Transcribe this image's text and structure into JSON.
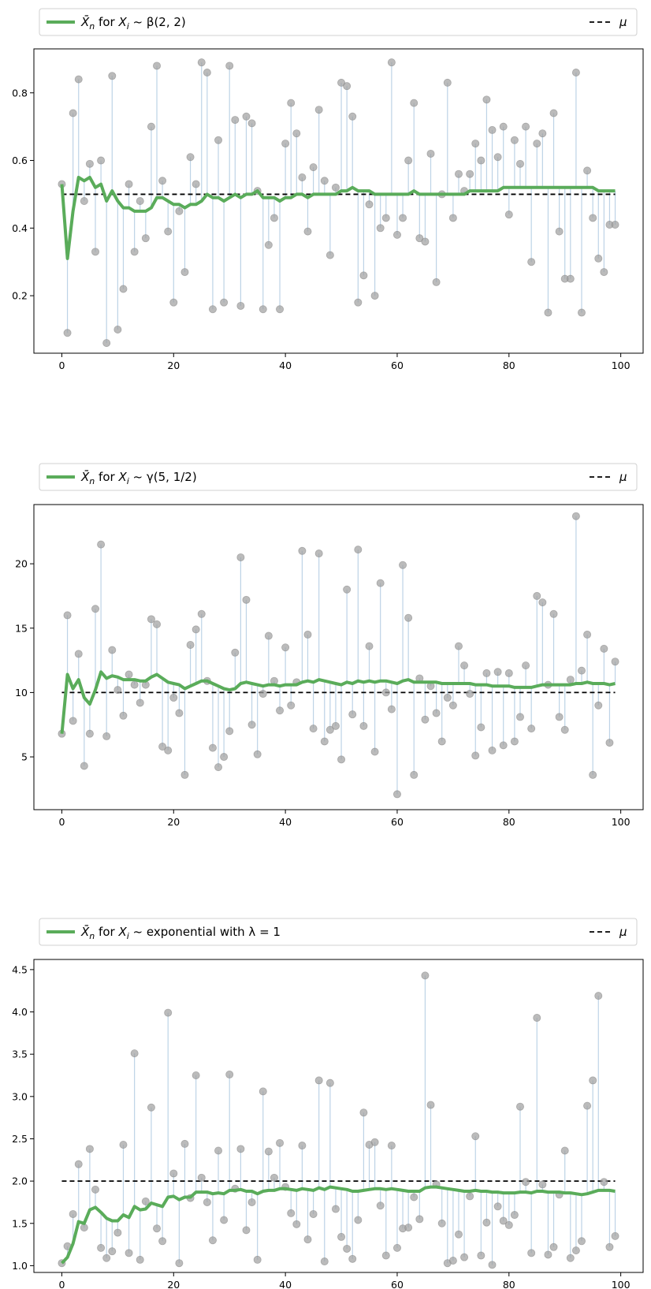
{
  "chart_data": [
    {
      "type": "scatter",
      "title": "",
      "legend": {
        "placement": "top",
        "series_label_prefix": "X̄",
        "series_label_sub": "n",
        "series_label_rest": " for ",
        "series_label_var": "X",
        "series_label_var_sub": "i",
        "series_label_dist": " ~ β(2, 2)",
        "mu_label": "μ"
      },
      "xlim": [
        -5,
        104
      ],
      "ylim": [
        0.03,
        0.93
      ],
      "xticks": [
        "0",
        "20",
        "40",
        "60",
        "80",
        "100"
      ],
      "xtick_values": [
        0,
        20,
        40,
        60,
        80,
        100
      ],
      "yticks": [
        "0.2",
        "0.4",
        "0.6",
        "0.8"
      ],
      "ytick_values": [
        0.2,
        0.4,
        0.6,
        0.8
      ],
      "mu": 0.5,
      "samples": [
        0.53,
        0.09,
        0.74,
        0.84,
        0.48,
        0.59,
        0.33,
        0.6,
        0.06,
        0.85,
        0.1,
        0.22,
        0.53,
        0.33,
        0.48,
        0.37,
        0.7,
        0.88,
        0.54,
        0.39,
        0.18,
        0.45,
        0.27,
        0.61,
        0.53,
        0.89,
        0.86,
        0.16,
        0.66,
        0.18,
        0.88,
        0.72,
        0.17,
        0.73,
        0.71,
        0.51,
        0.16,
        0.35,
        0.43,
        0.16,
        0.65,
        0.77,
        0.68,
        0.55,
        0.39,
        0.58,
        0.75,
        0.54,
        0.32,
        0.52,
        0.83,
        0.82,
        0.73,
        0.18,
        0.26,
        0.47,
        0.2,
        0.4,
        0.43,
        0.89,
        0.38,
        0.43,
        0.6,
        0.77,
        0.37,
        0.36,
        0.62,
        0.24,
        0.5,
        0.83,
        0.43,
        0.56,
        0.51,
        0.56,
        0.65,
        0.6,
        0.78,
        0.69,
        0.61,
        0.7,
        0.44,
        0.66,
        0.59,
        0.7,
        0.3,
        0.65,
        0.68,
        0.15,
        0.74,
        0.39,
        0.25,
        0.25,
        0.86,
        0.15,
        0.57,
        0.43,
        0.31,
        0.27,
        0.41,
        0.41
      ],
      "running_mean": [
        0.53,
        0.31,
        0.45,
        0.55,
        0.54,
        0.55,
        0.52,
        0.53,
        0.48,
        0.51,
        0.48,
        0.46,
        0.46,
        0.45,
        0.45,
        0.45,
        0.46,
        0.49,
        0.49,
        0.48,
        0.47,
        0.47,
        0.46,
        0.47,
        0.47,
        0.48,
        0.5,
        0.49,
        0.49,
        0.48,
        0.49,
        0.5,
        0.49,
        0.5,
        0.5,
        0.51,
        0.49,
        0.49,
        0.49,
        0.48,
        0.49,
        0.49,
        0.5,
        0.5,
        0.49,
        0.5,
        0.5,
        0.5,
        0.5,
        0.5,
        0.51,
        0.51,
        0.52,
        0.51,
        0.51,
        0.51,
        0.5,
        0.5,
        0.5,
        0.5,
        0.5,
        0.5,
        0.5,
        0.51,
        0.5,
        0.5,
        0.5,
        0.5,
        0.5,
        0.5,
        0.5,
        0.5,
        0.5,
        0.51,
        0.51,
        0.51,
        0.51,
        0.51,
        0.51,
        0.52,
        0.52,
        0.52,
        0.52,
        0.52,
        0.52,
        0.52,
        0.52,
        0.52,
        0.52,
        0.52,
        0.52,
        0.52,
        0.52,
        0.52,
        0.52,
        0.52,
        0.51,
        0.51,
        0.51,
        0.51
      ]
    },
    {
      "type": "scatter",
      "title": "",
      "legend": {
        "placement": "top",
        "series_label_prefix": "X̄",
        "series_label_sub": "n",
        "series_label_rest": " for ",
        "series_label_var": "X",
        "series_label_var_sub": "i",
        "series_label_dist": " ~ γ(5, 1/2)",
        "mu_label": "μ"
      },
      "xlim": [
        -5,
        104
      ],
      "ylim": [
        0.9,
        24.6
      ],
      "xticks": [
        "0",
        "20",
        "40",
        "60",
        "80",
        "100"
      ],
      "xtick_values": [
        0,
        20,
        40,
        60,
        80,
        100
      ],
      "yticks": [
        "5",
        "10",
        "15",
        "20"
      ],
      "ytick_values": [
        5,
        10,
        15,
        20
      ],
      "mu": 10,
      "samples": [
        6.8,
        16.0,
        7.8,
        13.0,
        4.3,
        6.8,
        16.5,
        21.5,
        6.6,
        13.3,
        10.2,
        8.2,
        11.4,
        10.6,
        9.2,
        10.6,
        15.7,
        15.3,
        5.8,
        5.5,
        9.6,
        8.4,
        3.6,
        13.7,
        14.9,
        16.1,
        10.9,
        5.7,
        4.2,
        5.0,
        7.0,
        13.1,
        20.5,
        17.2,
        7.5,
        5.2,
        9.9,
        14.4,
        10.9,
        8.6,
        13.5,
        9.0,
        10.8,
        21.0,
        14.5,
        7.2,
        20.8,
        6.2,
        7.1,
        7.4,
        4.8,
        18.0,
        8.3,
        21.1,
        7.4,
        13.6,
        5.4,
        18.5,
        10.0,
        8.7,
        2.1,
        19.9,
        15.8,
        3.6,
        11.1,
        7.9,
        10.5,
        8.4,
        6.2,
        9.6,
        9.0,
        13.6,
        12.1,
        9.9,
        5.1,
        7.3,
        11.5,
        5.5,
        11.6,
        5.9,
        11.5,
        6.2,
        8.1,
        12.1,
        7.2,
        17.5,
        17.0,
        10.6,
        16.1,
        8.1,
        7.1,
        11.0,
        23.7,
        11.7,
        14.5,
        3.6,
        9.0,
        13.4,
        6.1,
        12.4
      ],
      "running_mean": [
        6.8,
        11.4,
        10.3,
        11.0,
        9.6,
        9.1,
        10.2,
        11.6,
        11.1,
        11.3,
        11.2,
        11.0,
        11.0,
        11.0,
        10.9,
        10.9,
        11.2,
        11.4,
        11.1,
        10.8,
        10.7,
        10.6,
        10.3,
        10.5,
        10.7,
        10.9,
        10.9,
        10.7,
        10.5,
        10.3,
        10.2,
        10.3,
        10.7,
        10.8,
        10.7,
        10.6,
        10.5,
        10.6,
        10.6,
        10.5,
        10.6,
        10.6,
        10.6,
        10.8,
        10.9,
        10.8,
        11.0,
        10.9,
        10.8,
        10.7,
        10.6,
        10.8,
        10.7,
        10.9,
        10.8,
        10.9,
        10.8,
        10.9,
        10.9,
        10.8,
        10.7,
        10.9,
        11.0,
        10.8,
        10.8,
        10.8,
        10.8,
        10.8,
        10.7,
        10.7,
        10.7,
        10.7,
        10.7,
        10.7,
        10.6,
        10.6,
        10.6,
        10.5,
        10.5,
        10.5,
        10.5,
        10.4,
        10.4,
        10.4,
        10.4,
        10.5,
        10.6,
        10.6,
        10.6,
        10.6,
        10.6,
        10.6,
        10.7,
        10.7,
        10.8,
        10.7,
        10.7,
        10.7,
        10.6,
        10.7
      ]
    },
    {
      "type": "scatter",
      "title": "",
      "legend": {
        "placement": "top",
        "series_label_prefix": "X̄",
        "series_label_sub": "n",
        "series_label_rest": " for ",
        "series_label_var": "X",
        "series_label_var_sub": "i",
        "series_label_dist": " ~ exponential with λ = 1",
        "mu_label": "μ"
      },
      "xlim": [
        -5,
        104
      ],
      "ylim": [
        0.92,
        4.62
      ],
      "xticks": [
        "0",
        "20",
        "40",
        "60",
        "80",
        "100"
      ],
      "xtick_values": [
        0,
        20,
        40,
        60,
        80,
        100
      ],
      "yticks": [
        "1.0",
        "1.5",
        "2.0",
        "2.5",
        "3.0",
        "3.5",
        "4.0",
        "4.5"
      ],
      "ytick_values": [
        1.0,
        1.5,
        2.0,
        2.5,
        3.0,
        3.5,
        4.0,
        4.5
      ],
      "mu": 2.0,
      "samples": [
        1.03,
        1.23,
        1.61,
        2.2,
        1.45,
        2.38,
        1.9,
        1.21,
        1.09,
        1.17,
        1.39,
        2.43,
        1.15,
        3.51,
        1.07,
        1.76,
        2.87,
        1.44,
        1.29,
        3.99,
        2.09,
        1.03,
        2.44,
        1.8,
        3.25,
        2.04,
        1.75,
        1.3,
        2.36,
        1.54,
        3.26,
        1.91,
        2.38,
        1.42,
        1.75,
        1.07,
        3.06,
        2.35,
        2.04,
        2.45,
        1.93,
        1.62,
        1.49,
        2.42,
        1.31,
        1.61,
        3.19,
        1.05,
        3.16,
        1.67,
        1.34,
        1.2,
        1.08,
        1.54,
        2.81,
        2.43,
        2.46,
        1.71,
        1.12,
        2.42,
        1.21,
        1.44,
        1.45,
        1.81,
        1.55,
        4.43,
        2.9,
        1.96,
        1.5,
        1.03,
        1.06,
        1.37,
        1.1,
        1.82,
        2.53,
        1.12,
        1.51,
        1.01,
        1.7,
        1.53,
        1.48,
        1.6,
        2.88,
        1.99,
        1.15,
        3.93,
        1.96,
        1.13,
        1.22,
        1.84,
        2.36,
        1.09,
        1.18,
        1.29,
        2.89,
        3.19,
        4.19,
        1.99,
        1.22,
        1.35
      ],
      "running_mean": [
        1.03,
        1.1,
        1.26,
        1.52,
        1.5,
        1.66,
        1.69,
        1.63,
        1.56,
        1.53,
        1.53,
        1.6,
        1.57,
        1.7,
        1.66,
        1.67,
        1.74,
        1.72,
        1.7,
        1.81,
        1.82,
        1.78,
        1.81,
        1.81,
        1.87,
        1.87,
        1.87,
        1.85,
        1.86,
        1.85,
        1.89,
        1.89,
        1.9,
        1.88,
        1.88,
        1.85,
        1.88,
        1.89,
        1.89,
        1.91,
        1.91,
        1.9,
        1.89,
        1.91,
        1.9,
        1.89,
        1.92,
        1.9,
        1.93,
        1.92,
        1.91,
        1.9,
        1.88,
        1.88,
        1.89,
        1.9,
        1.91,
        1.91,
        1.9,
        1.91,
        1.9,
        1.89,
        1.88,
        1.88,
        1.88,
        1.92,
        1.93,
        1.93,
        1.92,
        1.91,
        1.9,
        1.89,
        1.88,
        1.88,
        1.89,
        1.88,
        1.88,
        1.87,
        1.87,
        1.86,
        1.86,
        1.86,
        1.87,
        1.87,
        1.86,
        1.88,
        1.88,
        1.87,
        1.87,
        1.87,
        1.86,
        1.86,
        1.85,
        1.84,
        1.85,
        1.87,
        1.89,
        1.89,
        1.89,
        1.88
      ]
    }
  ],
  "colors": {
    "sample_marker": "#9e9e9e",
    "stem": "#bdd3e6",
    "running_mean": "#5aac5a",
    "mu_line": "#000000",
    "frame": "#000000"
  }
}
